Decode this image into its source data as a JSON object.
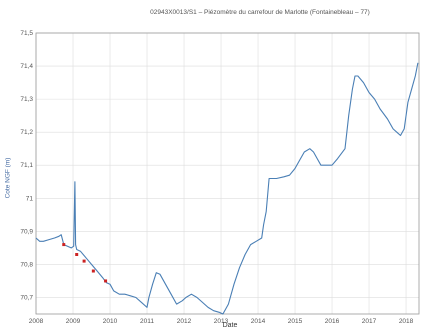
{
  "chart_data": {
    "type": "line",
    "title": "02943X0013/S1 – Piézomètre du carrefour de Marlotte (Fontainebleau – 77)",
    "xlabel": "Date",
    "ylabel": "Cote NGF (m)",
    "xlim": [
      2008,
      2018.35
    ],
    "ylim": [
      70.65,
      71.5
    ],
    "x_ticks": [
      "2008",
      "2009",
      "2010",
      "2011",
      "2012",
      "2013",
      "2014",
      "2015",
      "2016",
      "2017",
      "2018"
    ],
    "y_ticks": [
      "70,7",
      "70,8",
      "70,9",
      "71",
      "71,1",
      "71,2",
      "71,3",
      "71,4",
      "71,5"
    ],
    "grid": true,
    "series": [
      {
        "color": "#4a7fb5",
        "x": [
          2008.0,
          2008.1,
          2008.2,
          2008.35,
          2008.5,
          2008.62,
          2008.68,
          2008.75,
          2008.85,
          2008.95,
          2009.02,
          2009.05,
          2009.07,
          2009.1,
          2009.2,
          2009.35,
          2009.5,
          2009.65,
          2009.8,
          2009.9,
          2010.0,
          2010.1,
          2010.25,
          2010.4,
          2010.55,
          2010.7,
          2010.85,
          2011.0,
          2011.05,
          2011.15,
          2011.25,
          2011.35,
          2011.5,
          2011.65,
          2011.8,
          2011.95,
          2012.05,
          2012.2,
          2012.35,
          2012.5,
          2012.65,
          2012.8,
          2012.95,
          2013.05,
          2013.2,
          2013.35,
          2013.5,
          2013.65,
          2013.8,
          2013.95,
          2014.1,
          2014.15,
          2014.22,
          2014.3,
          2014.5,
          2014.7,
          2014.85,
          2015.0,
          2015.1,
          2015.25,
          2015.4,
          2015.5,
          2015.6,
          2015.7,
          2015.85,
          2016.0,
          2016.15,
          2016.35,
          2016.45,
          2016.55,
          2016.62,
          2016.7,
          2016.85,
          2017.0,
          2017.15,
          2017.3,
          2017.5,
          2017.65,
          2017.75,
          2017.85,
          2017.95,
          2018.05,
          2018.15,
          2018.25,
          2018.32
        ],
        "y": [
          70.88,
          70.87,
          70.87,
          70.875,
          70.88,
          70.885,
          70.89,
          70.86,
          70.855,
          70.85,
          70.855,
          71.05,
          70.86,
          70.845,
          70.84,
          70.82,
          70.8,
          70.78,
          70.76,
          70.745,
          70.74,
          70.72,
          70.71,
          70.71,
          70.705,
          70.7,
          70.685,
          70.67,
          70.7,
          70.74,
          70.775,
          70.77,
          70.74,
          70.71,
          70.68,
          70.69,
          70.7,
          70.71,
          70.7,
          70.685,
          70.67,
          70.66,
          70.655,
          70.65,
          70.68,
          70.74,
          70.79,
          70.83,
          70.86,
          70.87,
          70.88,
          70.92,
          70.96,
          71.06,
          71.06,
          71.065,
          71.07,
          71.09,
          71.11,
          71.14,
          71.15,
          71.14,
          71.12,
          71.1,
          71.1,
          71.1,
          71.12,
          71.15,
          71.25,
          71.33,
          71.37,
          71.37,
          71.35,
          71.32,
          71.3,
          71.27,
          71.24,
          71.21,
          71.2,
          71.19,
          71.21,
          71.29,
          71.33,
          71.37,
          71.41
        ]
      },
      {
        "type": "scatter",
        "color": "#cc2222",
        "x": [
          2008.75,
          2009.1,
          2009.3,
          2009.55,
          2009.88
        ],
        "y": [
          70.86,
          70.83,
          70.81,
          70.78,
          70.75
        ]
      }
    ]
  }
}
